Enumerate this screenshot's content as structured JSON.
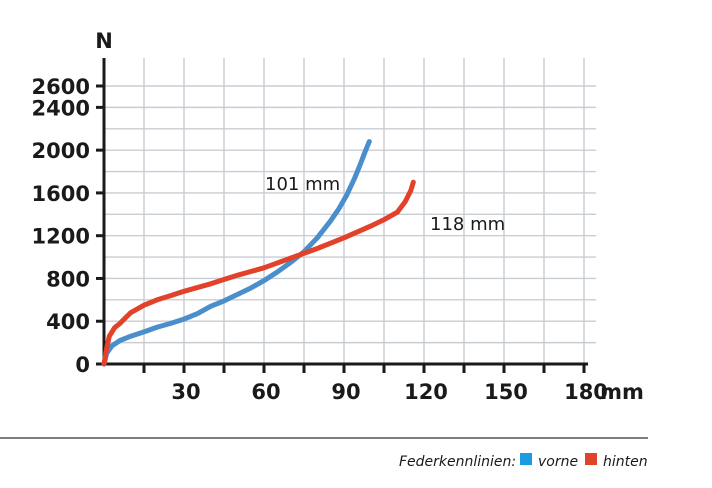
{
  "chart_data": {
    "type": "line",
    "xunit": "mm",
    "yunit": "N",
    "xlim": [
      0,
      180
    ],
    "ylim": [
      0,
      2600
    ],
    "xticks": [
      30,
      60,
      90,
      120,
      150,
      180
    ],
    "yticks": [
      0,
      400,
      800,
      1200,
      1600,
      2000,
      2400,
      2600
    ],
    "grid": true,
    "series": [
      {
        "name": "vorne",
        "color": "#4a8fcb",
        "end_label": "101 mm",
        "x": [
          0,
          1,
          3,
          6,
          10,
          15,
          20,
          25,
          30,
          35,
          40,
          45,
          50,
          55,
          60,
          65,
          70,
          75,
          80,
          85,
          88,
          91,
          94,
          96,
          98,
          99.5
        ],
        "y": [
          0,
          100,
          170,
          220,
          260,
          300,
          345,
          380,
          420,
          470,
          540,
          590,
          650,
          710,
          780,
          860,
          950,
          1050,
          1180,
          1340,
          1450,
          1580,
          1740,
          1860,
          1990,
          2080
        ]
      },
      {
        "name": "hinten",
        "color": "#e2412a",
        "end_label": "118 mm",
        "x": [
          0,
          1,
          2,
          4,
          6,
          8,
          10,
          15,
          20,
          25,
          30,
          40,
          50,
          60,
          70,
          80,
          90,
          100,
          105,
          110,
          113,
          115,
          116
        ],
        "y": [
          0,
          150,
          260,
          340,
          380,
          430,
          480,
          550,
          600,
          640,
          680,
          750,
          830,
          900,
          990,
          1080,
          1180,
          1290,
          1350,
          1420,
          1520,
          1620,
          1700
        ]
      }
    ]
  },
  "legend": {
    "prefix": "Federkennlinien:",
    "items": [
      {
        "label": "vorne",
        "color": "#1b9be0"
      },
      {
        "label": "hinten",
        "color": "#e2412a"
      }
    ]
  }
}
